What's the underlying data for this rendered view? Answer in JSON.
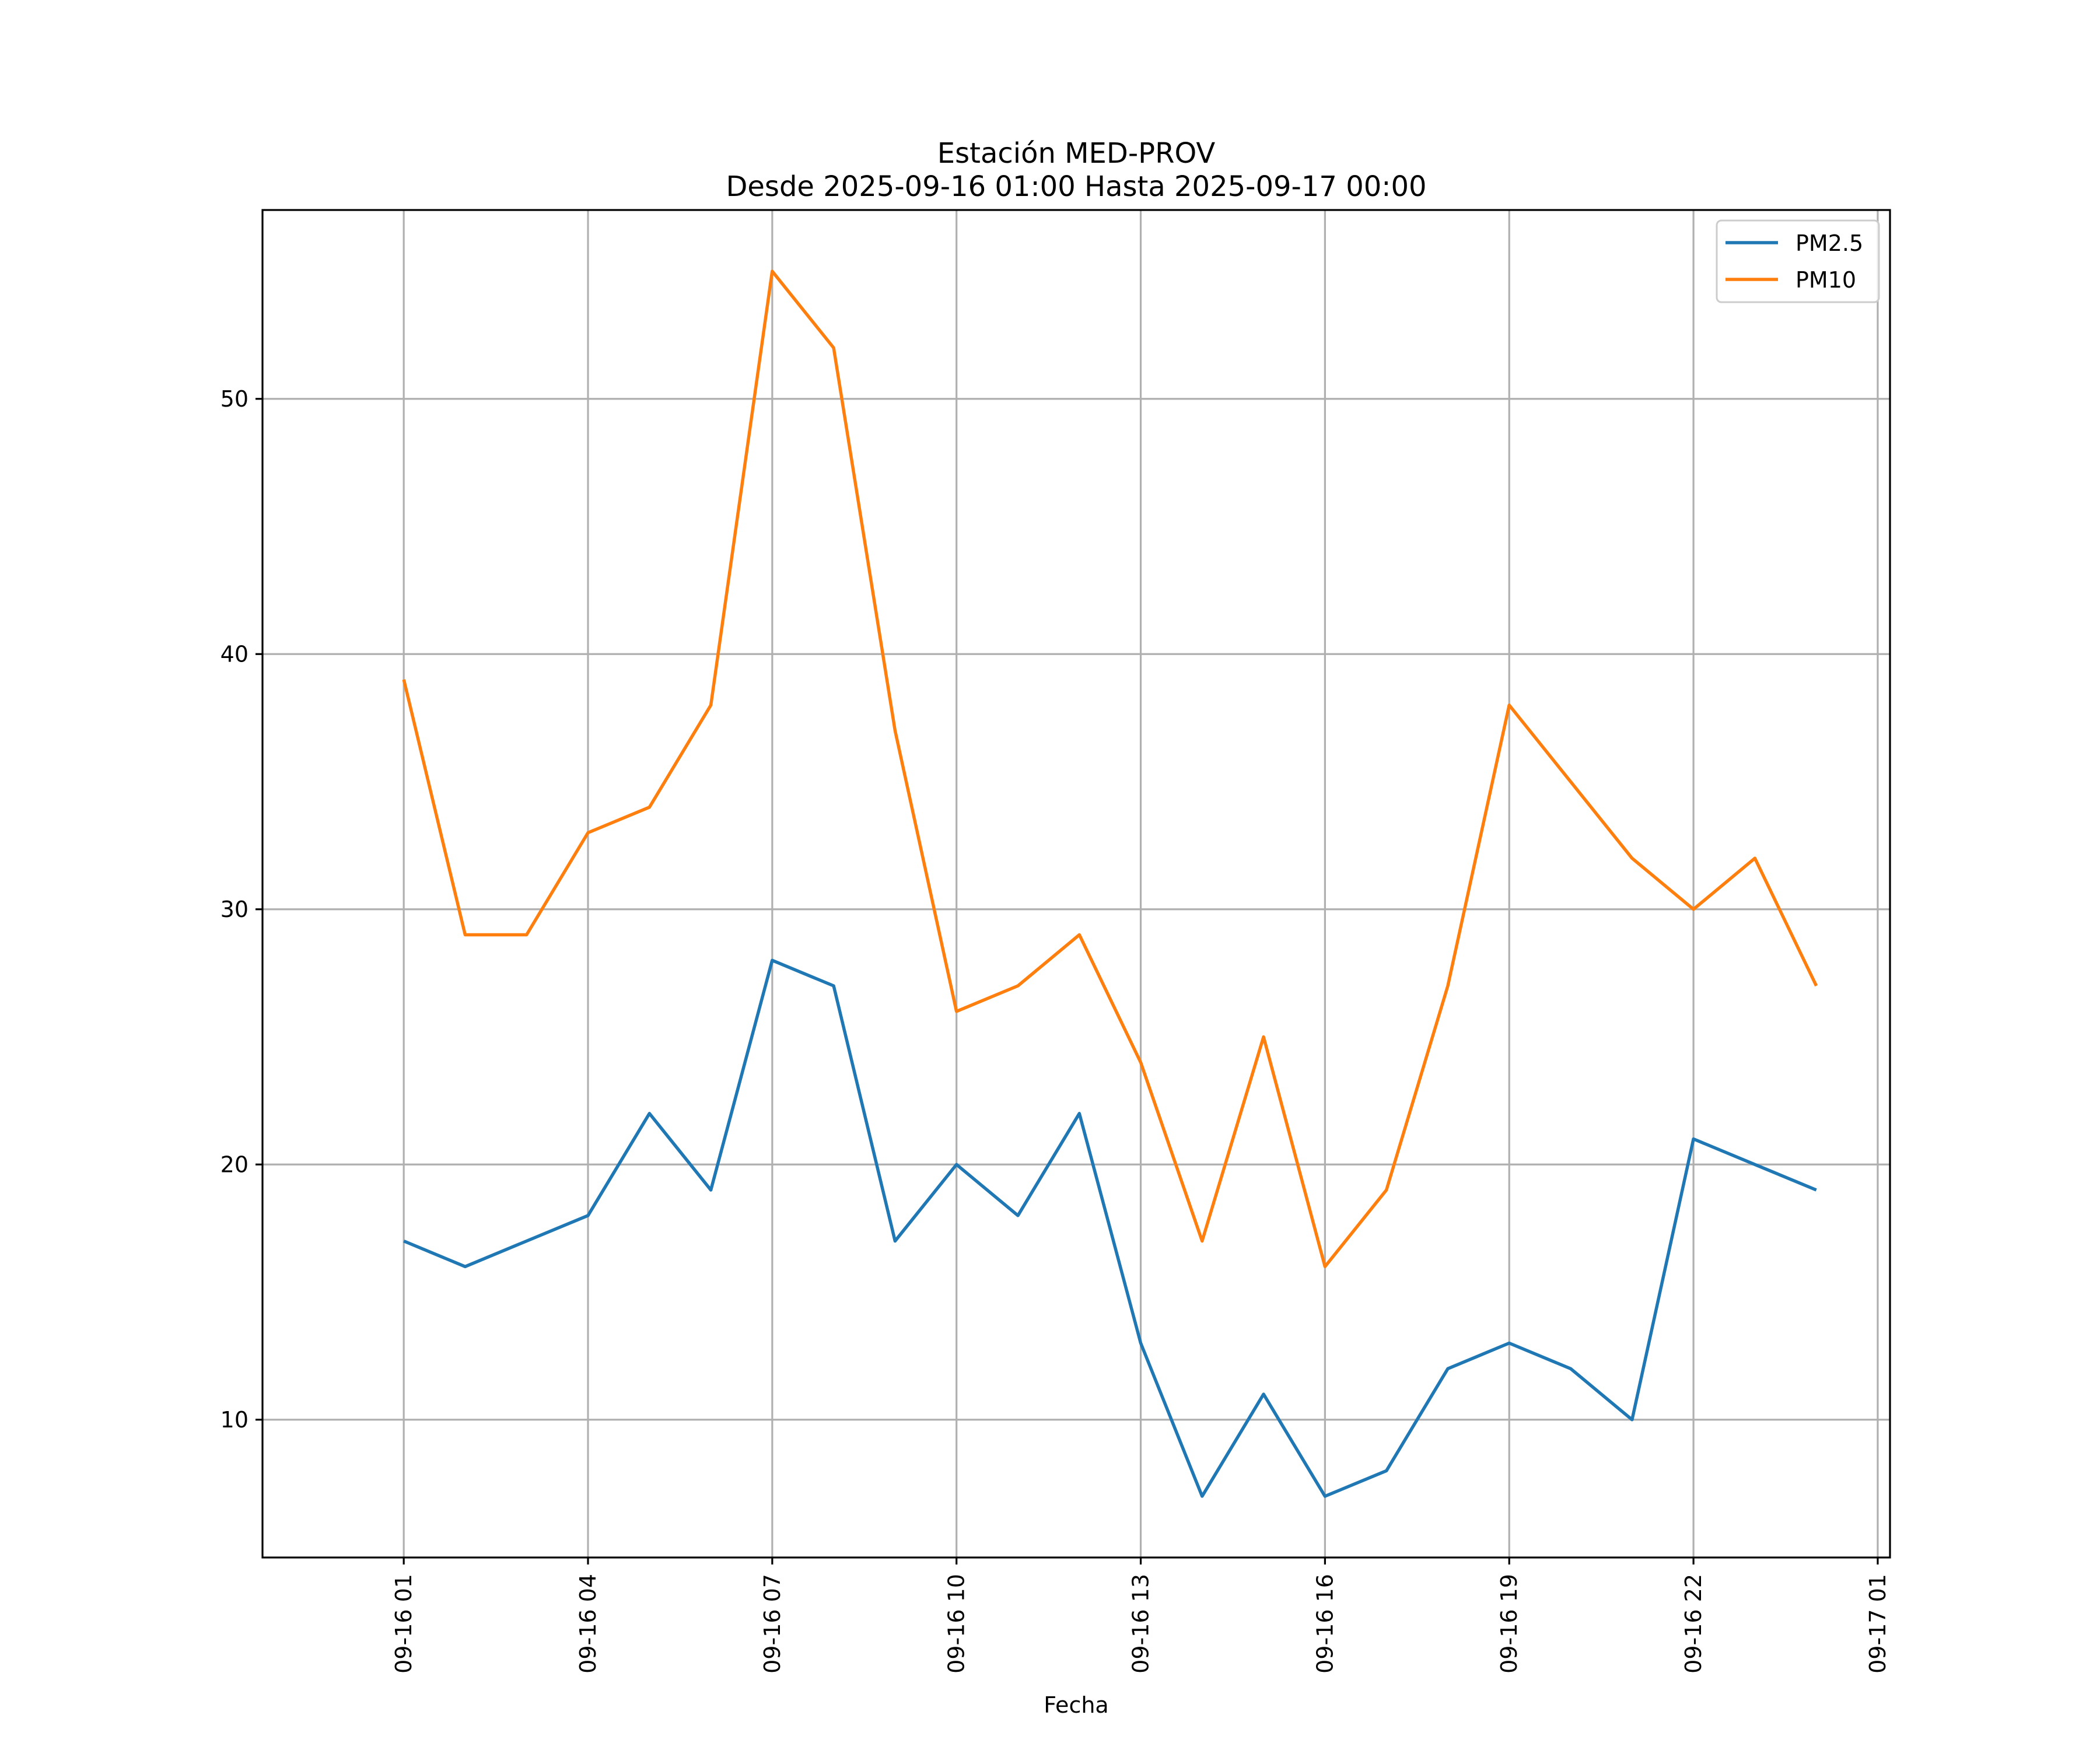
{
  "chart_data": {
    "type": "line",
    "title": "Estación MED-PROV",
    "subtitle": "Desde 2025-09-16 01:00 Hasta 2025-09-17 00:00",
    "xlabel": "Fecha",
    "ylabel": "",
    "grid": true,
    "legend_position": "top-right",
    "x_hours": [
      1,
      2,
      3,
      4,
      5,
      6,
      7,
      8,
      9,
      10,
      11,
      12,
      13,
      14,
      15,
      16,
      17,
      18,
      19,
      20,
      21,
      22,
      23,
      24
    ],
    "xlim": [
      -1.3,
      25.2
    ],
    "ylim": [
      4.6,
      57.4
    ],
    "x_ticks": [
      {
        "hour": 1,
        "label": "09-16 01"
      },
      {
        "hour": 4,
        "label": "09-16 04"
      },
      {
        "hour": 7,
        "label": "09-16 07"
      },
      {
        "hour": 10,
        "label": "09-16 10"
      },
      {
        "hour": 13,
        "label": "09-16 13"
      },
      {
        "hour": 16,
        "label": "09-16 16"
      },
      {
        "hour": 19,
        "label": "09-16 19"
      },
      {
        "hour": 22,
        "label": "09-16 22"
      },
      {
        "hour": 25,
        "label": "09-17 01"
      }
    ],
    "y_ticks": [
      10,
      20,
      30,
      40,
      50
    ],
    "series": [
      {
        "name": "PM2.5",
        "color": "#1f77b4",
        "values": [
          17,
          16,
          17,
          18,
          22,
          19,
          28,
          27,
          17,
          20,
          18,
          22,
          13,
          7,
          11,
          7,
          8,
          12,
          13,
          12,
          10,
          21,
          20,
          19
        ]
      },
      {
        "name": "PM10",
        "color": "#ff7f0e",
        "values": [
          39,
          29,
          29,
          33,
          34,
          38,
          55,
          52,
          37,
          26,
          27,
          29,
          24,
          17,
          25,
          16,
          19,
          27,
          38,
          35,
          32,
          30,
          32,
          27
        ]
      }
    ]
  }
}
